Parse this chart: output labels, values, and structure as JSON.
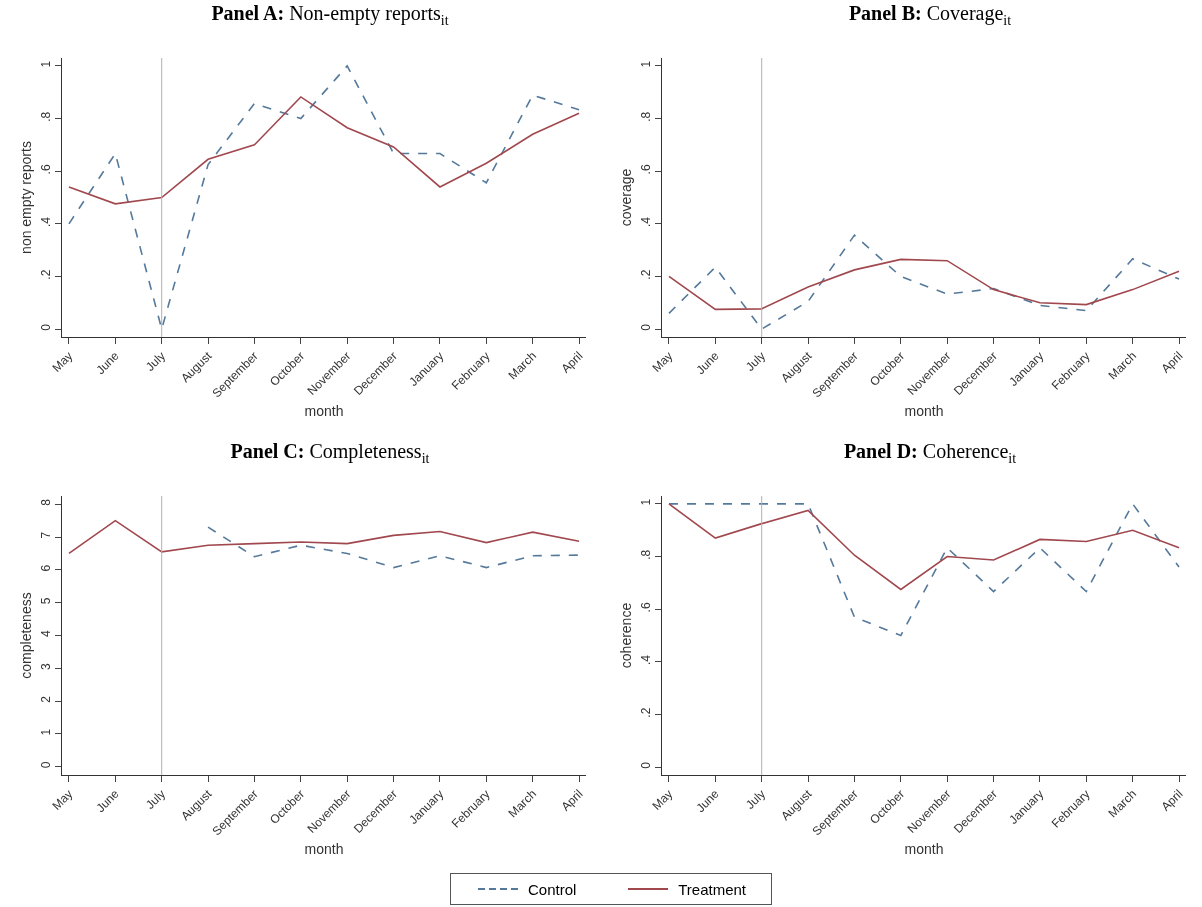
{
  "chart_data": [
    {
      "type": "line",
      "title": "Panel A: Non-empty reports$_{it}$",
      "xlabel": "month",
      "ylabel": "non empty reports",
      "categories": [
        "May",
        "June",
        "July",
        "August",
        "September",
        "October",
        "November",
        "December",
        "January",
        "February",
        "March",
        "April"
      ],
      "series": [
        {
          "name": "Control",
          "color": "#55799b",
          "line_style": "dashed",
          "values": [
            0.4,
            0.667,
            0,
            0.625,
            0.857,
            0.8,
            1.0,
            0.667,
            0.667,
            0.556,
            0.889,
            0.833
          ]
        },
        {
          "name": "Treatment",
          "color": "#a0484e",
          "line_style": "solid",
          "values": [
            0.54,
            0.476,
            0.5,
            0.645,
            0.7,
            0.882,
            0.765,
            0.692,
            0.54,
            0.63,
            0.74,
            0.82
          ]
        }
      ],
      "ylim": [
        -0.03,
        1.03
      ],
      "yticks": [
        {
          "value": 0,
          "label": "0"
        },
        {
          "value": 0.2,
          "label": ".2"
        },
        {
          "value": 0.4,
          "label": ".4"
        },
        {
          "value": 0.6,
          "label": ".6"
        },
        {
          "value": 0.8,
          "label": ".8"
        },
        {
          "value": 1,
          "label": "1"
        }
      ],
      "ref_lines": [
        {
          "axis": "x",
          "value": "July",
          "color": "#b0b0b0"
        }
      ],
      "grid": false,
      "legend": "bottom",
      "marker": "none"
    },
    {
      "type": "line",
      "title": "Panel B: Coverage$_{it}$",
      "xlabel": "month",
      "ylabel": "coverage",
      "categories": [
        "May",
        "June",
        "July",
        "August",
        "September",
        "October",
        "November",
        "December",
        "January",
        "February",
        "March",
        "April"
      ],
      "series": [
        {
          "name": "Control",
          "color": "#55799b",
          "line_style": "dashed",
          "values": [
            0.06,
            0.235,
            0,
            0.105,
            0.357,
            0.2,
            0.133,
            0.154,
            0.09,
            0.07,
            0.267,
            0.19
          ]
        },
        {
          "name": "Treatment",
          "color": "#a0484e",
          "line_style": "solid",
          "values": [
            0.2,
            0.075,
            0.077,
            0.16,
            0.225,
            0.265,
            0.26,
            0.15,
            0.1,
            0.093,
            0.15,
            0.22
          ]
        }
      ],
      "ylim": [
        -0.03,
        1.03
      ],
      "yticks": [
        {
          "value": 0,
          "label": "0"
        },
        {
          "value": 0.2,
          "label": ".2"
        },
        {
          "value": 0.4,
          "label": ".4"
        },
        {
          "value": 0.6,
          "label": ".6"
        },
        {
          "value": 0.8,
          "label": ".8"
        },
        {
          "value": 1,
          "label": "1"
        }
      ],
      "ref_lines": [
        {
          "axis": "x",
          "value": "July",
          "color": "#b0b0b0"
        }
      ],
      "grid": false,
      "legend": "bottom",
      "marker": "none"
    },
    {
      "type": "line",
      "title": "Panel C: Completeness$_{it}$",
      "xlabel": "month",
      "ylabel": "completeness",
      "categories": [
        "May",
        "June",
        "July",
        "August",
        "September",
        "October",
        "November",
        "December",
        "January",
        "February",
        "March",
        "April"
      ],
      "series": [
        {
          "name": "Control",
          "color": "#55799b",
          "line_style": "dashed",
          "values": [
            null,
            null,
            null,
            7.3,
            6.4,
            6.75,
            6.5,
            6.07,
            6.43,
            6.07,
            6.43,
            6.45
          ]
        },
        {
          "name": "Treatment",
          "color": "#a0484e",
          "line_style": "solid",
          "values": [
            6.5,
            7.5,
            6.55,
            6.75,
            6.8,
            6.85,
            6.8,
            7.05,
            7.17,
            6.83,
            7.15,
            6.87
          ]
        }
      ],
      "ylim": [
        -0.25,
        8.25
      ],
      "yticks": [
        0,
        1,
        2,
        3,
        4,
        5,
        6,
        7,
        8
      ],
      "ref_lines": [
        {
          "axis": "x",
          "value": "July",
          "color": "#b0b0b0"
        }
      ],
      "grid": false,
      "legend": "bottom",
      "marker": "none"
    },
    {
      "type": "line",
      "title": "Panel D: Coherence$_{it}$",
      "xlabel": "month",
      "ylabel": "coherence",
      "categories": [
        "May",
        "June",
        "July",
        "August",
        "September",
        "October",
        "November",
        "December",
        "January",
        "February",
        "March",
        "April"
      ],
      "series": [
        {
          "name": "Control",
          "color": "#55799b",
          "line_style": "dashed",
          "values": [
            1,
            1,
            1,
            1,
            0.57,
            0.5,
            0.833,
            0.667,
            0.833,
            0.667,
            1,
            0.76
          ]
        },
        {
          "name": "Treatment",
          "color": "#a0484e",
          "line_style": "solid",
          "values": [
            1,
            0.87,
            0.925,
            0.975,
            0.805,
            0.675,
            0.8,
            0.787,
            0.865,
            0.857,
            0.9,
            0.833
          ]
        }
      ],
      "ylim": [
        -0.03,
        1.03
      ],
      "yticks": [
        {
          "value": 0,
          "label": "0"
        },
        {
          "value": 0.2,
          "label": ".2"
        },
        {
          "value": 0.4,
          "label": ".4"
        },
        {
          "value": 0.6,
          "label": ".6"
        },
        {
          "value": 0.8,
          "label": ".8"
        },
        {
          "value": 1,
          "label": "1"
        }
      ],
      "ref_lines": [
        {
          "axis": "x",
          "value": "July",
          "color": "#b0b0b0"
        }
      ],
      "grid": false,
      "legend": "bottom",
      "marker": "none"
    }
  ]
}
